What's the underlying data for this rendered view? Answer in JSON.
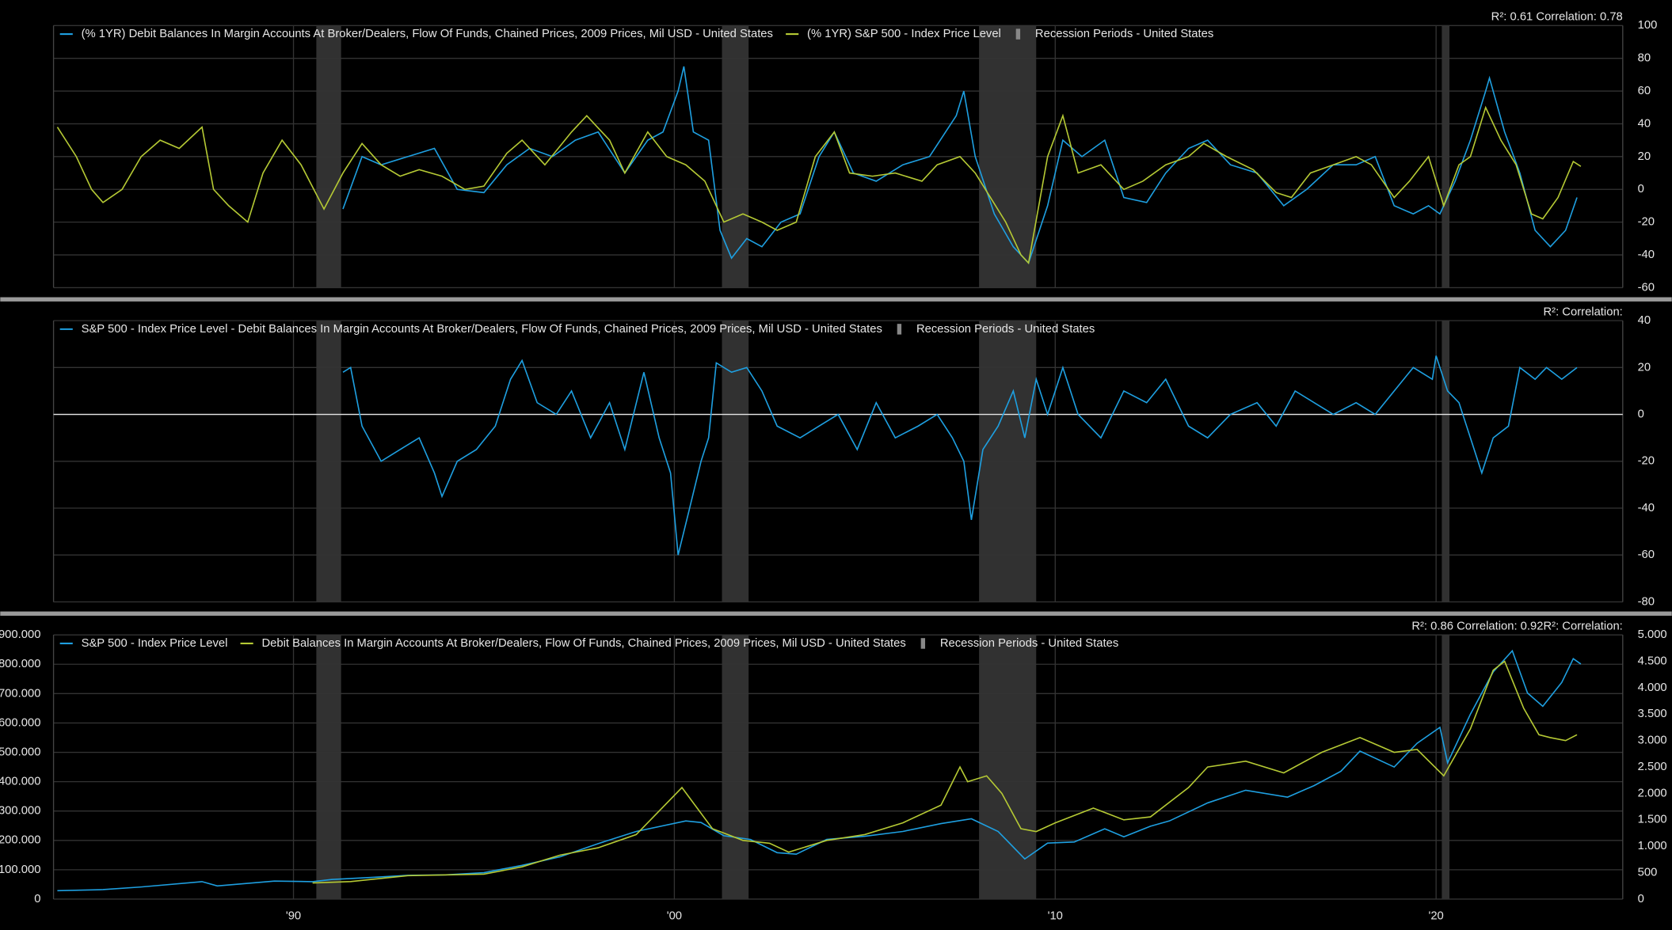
{
  "chart_data": [
    {
      "type": "line",
      "stats": "R²: 0.61 Correlation: 0.78",
      "xlim": [
        1983.7,
        2024.9
      ],
      "ylim": [
        -60,
        100
      ],
      "yticks": [
        -60,
        -40,
        -20,
        0,
        20,
        40,
        60,
        80,
        100
      ],
      "grid": true,
      "recessions": {
        "name": "Recession Periods - United States",
        "color": "#3a3a3a",
        "periods": [
          [
            1990.6,
            1991.25
          ],
          [
            2001.25,
            2001.95
          ],
          [
            2008.0,
            2009.5
          ],
          [
            2020.15,
            2020.35
          ]
        ]
      },
      "series": [
        {
          "name": "(% 1YR) Debit Balances In Margin Accounts At Broker/Dealers, Flow Of Funds, Chained Prices, 2009 Prices, Mil USD - United States",
          "color": "#1e9fe0",
          "axis": "y",
          "x": [
            1991.3,
            1991.8,
            1992.3,
            1993,
            1993.7,
            1994.3,
            1995,
            1995.6,
            1996.2,
            1996.8,
            1997.4,
            1998,
            1998.7,
            1999.3,
            1999.7,
            2000.1,
            2000.25,
            2000.5,
            2000.9,
            2001.2,
            2001.5,
            2001.9,
            2002.3,
            2002.8,
            2003.3,
            2003.8,
            2004.2,
            2004.7,
            2005.3,
            2006,
            2006.7,
            2007.4,
            2007.6,
            2007.9,
            2008.4,
            2008.9,
            2009.3,
            2009.8,
            2010.2,
            2010.7,
            2011.3,
            2011.8,
            2012.4,
            2012.9,
            2013.5,
            2014,
            2014.6,
            2015.3,
            2016,
            2016.6,
            2017.3,
            2017.9,
            2018.4,
            2018.9,
            2019.4,
            2019.8,
            2020.1,
            2020.5,
            2020.9,
            2021.3,
            2021.4,
            2021.8,
            2022.2,
            2022.6,
            2023,
            2023.4,
            2023.7
          ],
          "values": [
            -12,
            20,
            15,
            20,
            25,
            0,
            -2,
            15,
            25,
            20,
            30,
            35,
            10,
            30,
            35,
            60,
            75,
            35,
            30,
            -25,
            -42,
            -30,
            -35,
            -20,
            -15,
            20,
            35,
            10,
            5,
            15,
            20,
            45,
            60,
            20,
            -15,
            -35,
            -45,
            -10,
            30,
            20,
            30,
            -5,
            -8,
            10,
            25,
            30,
            15,
            10,
            -10,
            0,
            15,
            15,
            20,
            -10,
            -15,
            -10,
            -15,
            5,
            30,
            60,
            68,
            35,
            10,
            -25,
            -35,
            -25,
            -5
          ]
        },
        {
          "name": "(% 1YR) S&P 500 - Index Price Level",
          "color": "#b5c934",
          "axis": "y",
          "x": [
            1983.8,
            1984.3,
            1984.7,
            1985,
            1985.5,
            1986,
            1986.5,
            1987,
            1987.6,
            1987.9,
            1988.3,
            1988.8,
            1989.2,
            1989.7,
            1990.2,
            1990.8,
            1991.3,
            1991.8,
            1992.3,
            1992.8,
            1993.3,
            1993.9,
            1994.5,
            1995,
            1995.6,
            1996,
            1996.6,
            1997.3,
            1997.7,
            1998.3,
            1998.7,
            1999.3,
            1999.8,
            2000.3,
            2000.8,
            2001.3,
            2001.8,
            2002.3,
            2002.7,
            2003.2,
            2003.7,
            2004.2,
            2004.6,
            2005.2,
            2005.8,
            2006.5,
            2006.9,
            2007.5,
            2007.9,
            2008.3,
            2008.7,
            2009.1,
            2009.3,
            2009.8,
            2010.2,
            2010.6,
            2011.2,
            2011.8,
            2012.3,
            2012.9,
            2013.5,
            2013.9,
            2014.5,
            2015.2,
            2015.8,
            2016.2,
            2016.7,
            2017.3,
            2017.9,
            2018.3,
            2018.9,
            2019.3,
            2019.8,
            2020.2,
            2020.6,
            2020.9,
            2021.3,
            2021.7,
            2022.1,
            2022.5,
            2022.8,
            2023.2,
            2023.6,
            2023.8
          ],
          "values": [
            38,
            20,
            0,
            -8,
            0,
            20,
            30,
            25,
            38,
            0,
            -10,
            -20,
            10,
            30,
            15,
            -12,
            10,
            28,
            15,
            8,
            12,
            8,
            0,
            2,
            22,
            30,
            15,
            35,
            45,
            30,
            10,
            35,
            20,
            15,
            5,
            -20,
            -15,
            -20,
            -25,
            -20,
            20,
            35,
            10,
            8,
            10,
            5,
            15,
            20,
            10,
            -5,
            -20,
            -40,
            -45,
            20,
            45,
            10,
            15,
            0,
            5,
            15,
            20,
            28,
            20,
            12,
            -2,
            -5,
            10,
            15,
            20,
            15,
            -5,
            5,
            20,
            -10,
            15,
            20,
            50,
            30,
            15,
            -15,
            -18,
            -5,
            17,
            14
          ]
        }
      ]
    },
    {
      "type": "line",
      "stats": "R²:  Correlation:",
      "xlim": [
        1983.7,
        2024.9
      ],
      "ylim": [
        -80,
        40
      ],
      "yticks": [
        -80,
        -60,
        -40,
        -20,
        0,
        20,
        40
      ],
      "grid": true,
      "zero_line": true,
      "recessions": {
        "name": "Recession Periods - United States",
        "color": "#3a3a3a",
        "periods": [
          [
            1990.6,
            1991.25
          ],
          [
            2001.25,
            2001.95
          ],
          [
            2008.0,
            2009.5
          ],
          [
            2020.15,
            2020.35
          ]
        ]
      },
      "series": [
        {
          "name": "S&P 500 - Index Price Level - Debit Balances In Margin Accounts At Broker/Dealers, Flow Of Funds, Chained Prices, 2009 Prices, Mil USD - United States",
          "color": "#1e9fe0",
          "axis": "y",
          "x": [
            1991.3,
            1991.5,
            1991.8,
            1992.3,
            1992.8,
            1993.3,
            1993.7,
            1993.9,
            1994.3,
            1994.8,
            1995.3,
            1995.7,
            1996,
            1996.4,
            1996.9,
            1997.3,
            1997.8,
            1998.3,
            1998.7,
            1999.2,
            1999.6,
            1999.9,
            2000.1,
            2000.4,
            2000.7,
            2000.9,
            2001.1,
            2001.5,
            2001.9,
            2002.3,
            2002.7,
            2003.3,
            2003.8,
            2004.3,
            2004.8,
            2005.3,
            2005.8,
            2006.4,
            2006.9,
            2007.3,
            2007.6,
            2007.8,
            2008.1,
            2008.5,
            2008.9,
            2009.2,
            2009.5,
            2009.8,
            2010.2,
            2010.6,
            2011.2,
            2011.8,
            2012.4,
            2012.9,
            2013.5,
            2014,
            2014.6,
            2015.3,
            2015.8,
            2016.3,
            2016.8,
            2017.3,
            2017.9,
            2018.4,
            2018.9,
            2019.4,
            2019.9,
            2020.0,
            2020.3,
            2020.6,
            2020.9,
            2021.2,
            2021.5,
            2021.9,
            2022.2,
            2022.6,
            2022.9,
            2023.3,
            2023.7
          ],
          "values": [
            18,
            20,
            -5,
            -20,
            -15,
            -10,
            -25,
            -35,
            -20,
            -15,
            -5,
            15,
            23,
            5,
            0,
            10,
            -10,
            5,
            -15,
            18,
            -10,
            -25,
            -60,
            -40,
            -20,
            -10,
            22,
            18,
            20,
            10,
            -5,
            -10,
            -5,
            0,
            -15,
            5,
            -10,
            -5,
            0,
            -10,
            -20,
            -45,
            -15,
            -5,
            10,
            -10,
            15,
            0,
            20,
            0,
            -10,
            10,
            5,
            15,
            -5,
            -10,
            0,
            5,
            -5,
            10,
            5,
            0,
            5,
            0,
            10,
            20,
            15,
            25,
            10,
            5,
            -10,
            -25,
            -10,
            -5,
            20,
            15,
            20,
            15,
            20
          ]
        }
      ]
    },
    {
      "type": "line",
      "stats": "R²: 0.86 Correlation: 0.92R²:  Correlation:",
      "xlim": [
        1983.7,
        2024.9
      ],
      "xticks": [
        {
          "value": 1990,
          "label": "'90"
        },
        {
          "value": 2000,
          "label": "'00"
        },
        {
          "value": 2010,
          "label": "'10"
        },
        {
          "value": 2020,
          "label": "'20"
        }
      ],
      "ylim": [
        0,
        900000
      ],
      "yticks": [
        0,
        {
          "value": 100000,
          "label": "100.000"
        },
        {
          "value": 200000,
          "label": "200.000"
        },
        {
          "value": 300000,
          "label": "300.000"
        },
        {
          "value": 400000,
          "label": "400.000"
        },
        {
          "value": 500000,
          "label": "500.000"
        },
        {
          "value": 600000,
          "label": "600.000"
        },
        {
          "value": 700000,
          "label": "700.000"
        },
        {
          "value": 800000,
          "label": "800.000"
        },
        {
          "value": 900000,
          "label": "900.000"
        }
      ],
      "y2lim": [
        0,
        5000
      ],
      "y2ticks": [
        0,
        500,
        {
          "value": 1000,
          "label": "1.000"
        },
        {
          "value": 1500,
          "label": "1.500"
        },
        {
          "value": 2000,
          "label": "2.000"
        },
        {
          "value": 2500,
          "label": "2.500"
        },
        {
          "value": 3000,
          "label": "3.000"
        },
        {
          "value": 3500,
          "label": "3.500"
        },
        {
          "value": 4000,
          "label": "4.000"
        },
        {
          "value": 4500,
          "label": "4.500"
        },
        {
          "value": 5000,
          "label": "5.000"
        }
      ],
      "grid": true,
      "recessions": {
        "name": "Recession Periods - United States",
        "color": "#3a3a3a",
        "periods": [
          [
            1990.6,
            1991.25
          ],
          [
            2001.25,
            2001.95
          ],
          [
            2008.0,
            2009.5
          ],
          [
            2020.15,
            2020.35
          ]
        ]
      },
      "series": [
        {
          "name": "S&P 500 - Index Price Level",
          "color": "#1e9fe0",
          "axis": "y2",
          "x": [
            1983.8,
            1985,
            1986,
            1987.6,
            1988,
            1989.5,
            1990.5,
            1991,
            1992,
            1993,
            1994,
            1995,
            1996,
            1997,
            1998,
            1999,
            2000.3,
            2000.7,
            2001.3,
            2002,
            2002.7,
            2003.2,
            2004,
            2005,
            2006,
            2007,
            2007.8,
            2008.5,
            2009.2,
            2009.8,
            2010.5,
            2011.3,
            2011.8,
            2012.5,
            2013,
            2014,
            2015,
            2016.1,
            2016.8,
            2017.5,
            2018,
            2018.9,
            2019.5,
            2020.1,
            2020.3,
            2020.9,
            2021.5,
            2022,
            2022.4,
            2022.8,
            2023.3,
            2023.6,
            2023.8
          ],
          "values": [
            160,
            180,
            230,
            330,
            250,
            340,
            330,
            370,
            410,
            450,
            460,
            500,
            640,
            800,
            1050,
            1280,
            1480,
            1450,
            1200,
            1130,
            880,
            850,
            1130,
            1190,
            1280,
            1430,
            1520,
            1280,
            760,
            1060,
            1080,
            1330,
            1180,
            1380,
            1480,
            1820,
            2060,
            1930,
            2150,
            2420,
            2800,
            2500,
            2950,
            3250,
            2580,
            3500,
            4300,
            4700,
            3900,
            3650,
            4100,
            4550,
            4450
          ]
        },
        {
          "name": "Debit Balances In Margin Accounts At Broker/Dealers, Flow Of Funds, Chained Prices, 2009 Prices, Mil USD - United States",
          "color": "#b5c934",
          "axis": "y",
          "x": [
            1990.5,
            1991.5,
            1993,
            1995,
            1996,
            1997,
            1998,
            1999,
            2000.2,
            2000.6,
            2001,
            2001.8,
            2002.5,
            2003,
            2004,
            2005,
            2006,
            2007,
            2007.5,
            2007.7,
            2008.2,
            2008.6,
            2009.1,
            2009.5,
            2010,
            2011,
            2011.8,
            2012.5,
            2013.5,
            2014,
            2015,
            2016,
            2017,
            2018,
            2018.9,
            2019.5,
            2020.2,
            2020.9,
            2021.5,
            2021.8,
            2022.3,
            2022.7,
            2023,
            2023.4,
            2023.7
          ],
          "values": [
            55000,
            60000,
            80000,
            85000,
            110000,
            150000,
            175000,
            220000,
            380000,
            310000,
            240000,
            200000,
            190000,
            160000,
            200000,
            220000,
            260000,
            320000,
            450000,
            400000,
            420000,
            360000,
            240000,
            230000,
            260000,
            310000,
            270000,
            280000,
            380000,
            450000,
            470000,
            430000,
            500000,
            550000,
            500000,
            510000,
            420000,
            580000,
            780000,
            810000,
            650000,
            560000,
            550000,
            540000,
            560000
          ]
        }
      ]
    }
  ]
}
